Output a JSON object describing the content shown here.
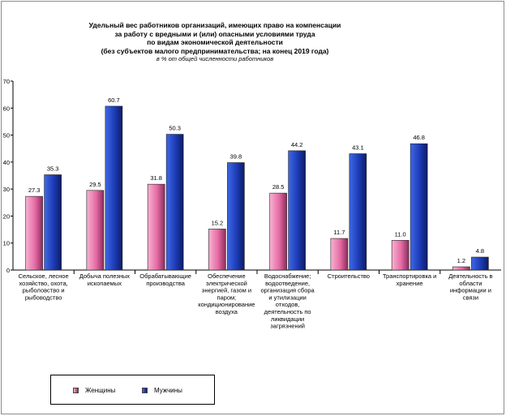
{
  "chart_data": {
    "type": "bar",
    "title": [
      "Удельный вес работников организаций, имеющих право на компенсации",
      "за работу с вредными и (или) опасными условиями труда",
      "по видам экономической деятельности",
      "(без субъектов малого предпринимательства; на конец 2019 года)"
    ],
    "subtitle": "в % от общей численности работников",
    "ylim": [
      0,
      70
    ],
    "yticks": [
      0,
      10,
      20,
      30,
      40,
      50,
      60,
      70
    ],
    "grid": false,
    "legend_position": "bottom-left",
    "categories": [
      [
        "Сельское, лесное",
        "хозяйство, охота,",
        "рыболовство и",
        "рыбоводство"
      ],
      [
        "Добыча полезных",
        "ископаемых"
      ],
      [
        "Обрабатывающие",
        "производства"
      ],
      [
        "Обеспечение",
        "электрической",
        "энергией, газом и",
        "паром;",
        "кондиционирование",
        "воздуха"
      ],
      [
        "Водоснабжение;",
        "водоотведение,",
        "организация сбора",
        "и утилизации",
        "отходов,",
        "деятельность по",
        "ликвидации",
        "загрязнений"
      ],
      [
        "Строительство"
      ],
      [
        "Транспортировка и",
        "хранение"
      ],
      [
        "Деятельность в",
        "области",
        "информации и",
        "связи"
      ]
    ],
    "series": [
      {
        "name": "Женщины",
        "values": [
          27.3,
          29.5,
          31.8,
          15.2,
          28.5,
          11.7,
          11.0,
          1.2
        ],
        "labels": [
          "27.3",
          "29.5",
          "31.8",
          "15.2",
          "28.5",
          "11.7",
          "11.0",
          "1.2"
        ],
        "color_top": "#f7b3d1",
        "color_mid": "#e56ba5",
        "color_edge": "#8c2c5c"
      },
      {
        "name": "Мужчины",
        "values": [
          35.3,
          60.7,
          50.3,
          39.8,
          44.2,
          43.1,
          46.8,
          4.8
        ],
        "labels": [
          "35.3",
          "60.7",
          "50.3",
          "39.8",
          "44.2",
          "43.1",
          "46.8",
          "4.8"
        ],
        "color_top": "#3f68e6",
        "color_mid": "#1c3bb5",
        "color_edge": "#0d1c66"
      }
    ]
  },
  "legend": {
    "women_label": "Женщины",
    "men_label": "Мужчины",
    "women_color": "#e56ba5",
    "men_color": "#1c3bb5"
  }
}
